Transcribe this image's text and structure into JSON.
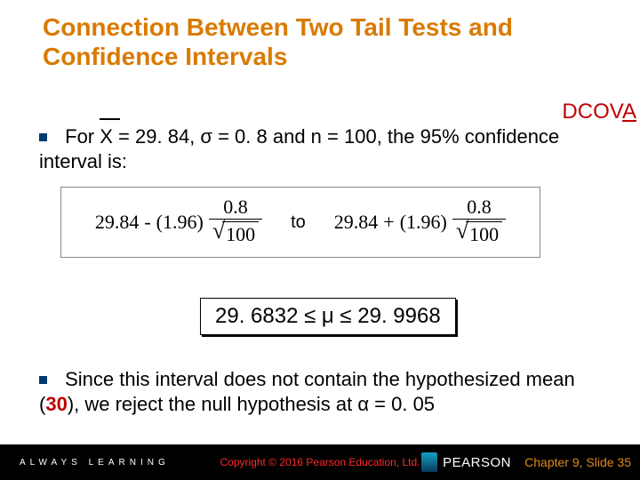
{
  "title_color": "#d97a00",
  "title": "Connection Between Two Tail Tests and Confidence Intervals",
  "dcova": {
    "prefix": "DCOV",
    "a": "A",
    "color": "#c00000"
  },
  "bullet_color": "#003b6f",
  "p1": {
    "for": "For",
    "x": "X",
    "eq1": " = 29. 84,  σ = 0. 8  and  n = 100, the 95% confidence interval is:"
  },
  "formula": {
    "base": "29.84",
    "z": "(1.96)",
    "num": "0.8",
    "den": "100",
    "minus": "-",
    "plus": "+",
    "to": "to"
  },
  "result": "29. 6832 ≤ μ ≤ 29. 9968",
  "p2": {
    "t1": "Since this interval does not contain the hypothesized mean (",
    "mean": "30",
    "t2": "), we reject the null hypothesis at ",
    "alpha": "α",
    "t3": " = 0. 05",
    "red": "#c00000"
  },
  "footer": {
    "always": "ALWAYS LEARNING",
    "copyright": "Copyright © 2016 Pearson Education, Ltd.",
    "pearson": "PEARSON",
    "chapter": "Chapter 9, Slide 35",
    "chapter_color": "#e08a1e"
  }
}
